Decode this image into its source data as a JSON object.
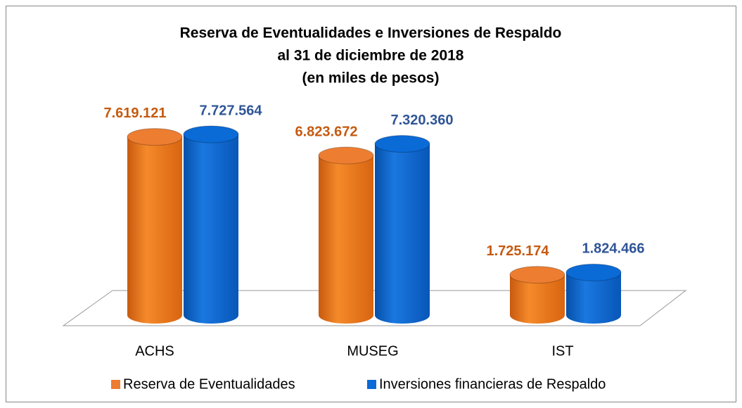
{
  "chart_data": {
    "type": "bar3d",
    "title": [
      "Reserva de Eventualidades e Inversiones de Respaldo",
      "al 31 de diciembre de 2018",
      "(en miles de pesos)"
    ],
    "categories": [
      "ACHS",
      "MUSEG",
      "IST"
    ],
    "series": [
      {
        "name": "Reserva de Eventualidades",
        "color": "#ed7d31",
        "label_color": "#c55a11",
        "values": [
          7619121,
          6823672,
          1725174
        ],
        "value_labels": [
          "7.619.121",
          "6.823.672",
          "1.725.174"
        ]
      },
      {
        "name": "Inversiones financieras de Respaldo",
        "color": "#0a6ad6",
        "label_color": "#2f5597",
        "values": [
          7727564,
          7320360,
          1824466
        ],
        "value_labels": [
          "7.727.564",
          "7.320.360",
          "1.824.466"
        ]
      }
    ],
    "legend": "bottom"
  }
}
